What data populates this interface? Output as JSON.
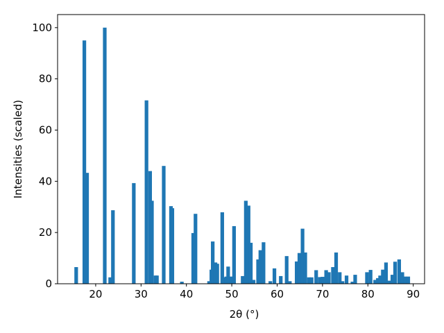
{
  "chart_data": {
    "type": "bar",
    "xlabel": "2θ (°)",
    "ylabel": "Intensities (scaled)",
    "color": "#1f77b4",
    "x": [
      15.7,
      17.5,
      18.1,
      22.0,
      23.2,
      23.8,
      28.4,
      31.2,
      32.0,
      32.4,
      33.2,
      33.5,
      35.0,
      36.6,
      36.9,
      39.0,
      41.5,
      42.0,
      45.0,
      45.5,
      45.8,
      46.4,
      46.8,
      47.9,
      48.4,
      48.8,
      49.2,
      49.8,
      50.5,
      52.4,
      53.1,
      53.7,
      54.2,
      54.8,
      55.8,
      56.3,
      57.0,
      58.5,
      59.4,
      60.8,
      62.1,
      62.8,
      64.3,
      64.9,
      65.6,
      66.2,
      67.0,
      67.6,
      68.6,
      69.4,
      70.0,
      70.8,
      71.4,
      72.3,
      73.0,
      73.8,
      74.4,
      75.3,
      76.6,
      77.2,
      79.8,
      80.6,
      81.6,
      82.2,
      82.7,
      83.3,
      84.0,
      84.8,
      85.4,
      86.0,
      86.9,
      87.6,
      88.2,
      88.9
    ],
    "values": [
      6.5,
      95,
      43.3,
      100,
      2.5,
      28.7,
      39.3,
      71.6,
      44,
      32.4,
      3.2,
      3.2,
      46,
      30.3,
      29.5,
      0.8,
      19.8,
      27.3,
      1.0,
      5.5,
      16.5,
      8.3,
      7.8,
      27.9,
      2.5,
      2.8,
      6.7,
      2.8,
      22.5,
      3.0,
      32.4,
      30.5,
      16,
      1.5,
      9.5,
      13.1,
      16.2,
      1.0,
      6.0,
      3.0,
      10.8,
      1.0,
      8.7,
      12,
      21.5,
      12.2,
      2.5,
      2.5,
      5.3,
      2.6,
      2.7,
      5.3,
      4.5,
      6.5,
      12.2,
      4.5,
      1.0,
      3.2,
      0.8,
      3.5,
      4.5,
      5.4,
      1.5,
      2.2,
      3.2,
      5.5,
      8.3,
      1.2,
      3.5,
      8.6,
      9.5,
      4.5,
      2.8,
      2.8
    ],
    "xlim": [
      11.6,
      92.5
    ],
    "ylim": [
      0,
      105.1
    ],
    "xticks": [
      20,
      30,
      40,
      50,
      60,
      70,
      80,
      90
    ],
    "yticks": [
      0,
      20,
      40,
      60,
      80,
      100
    ]
  }
}
